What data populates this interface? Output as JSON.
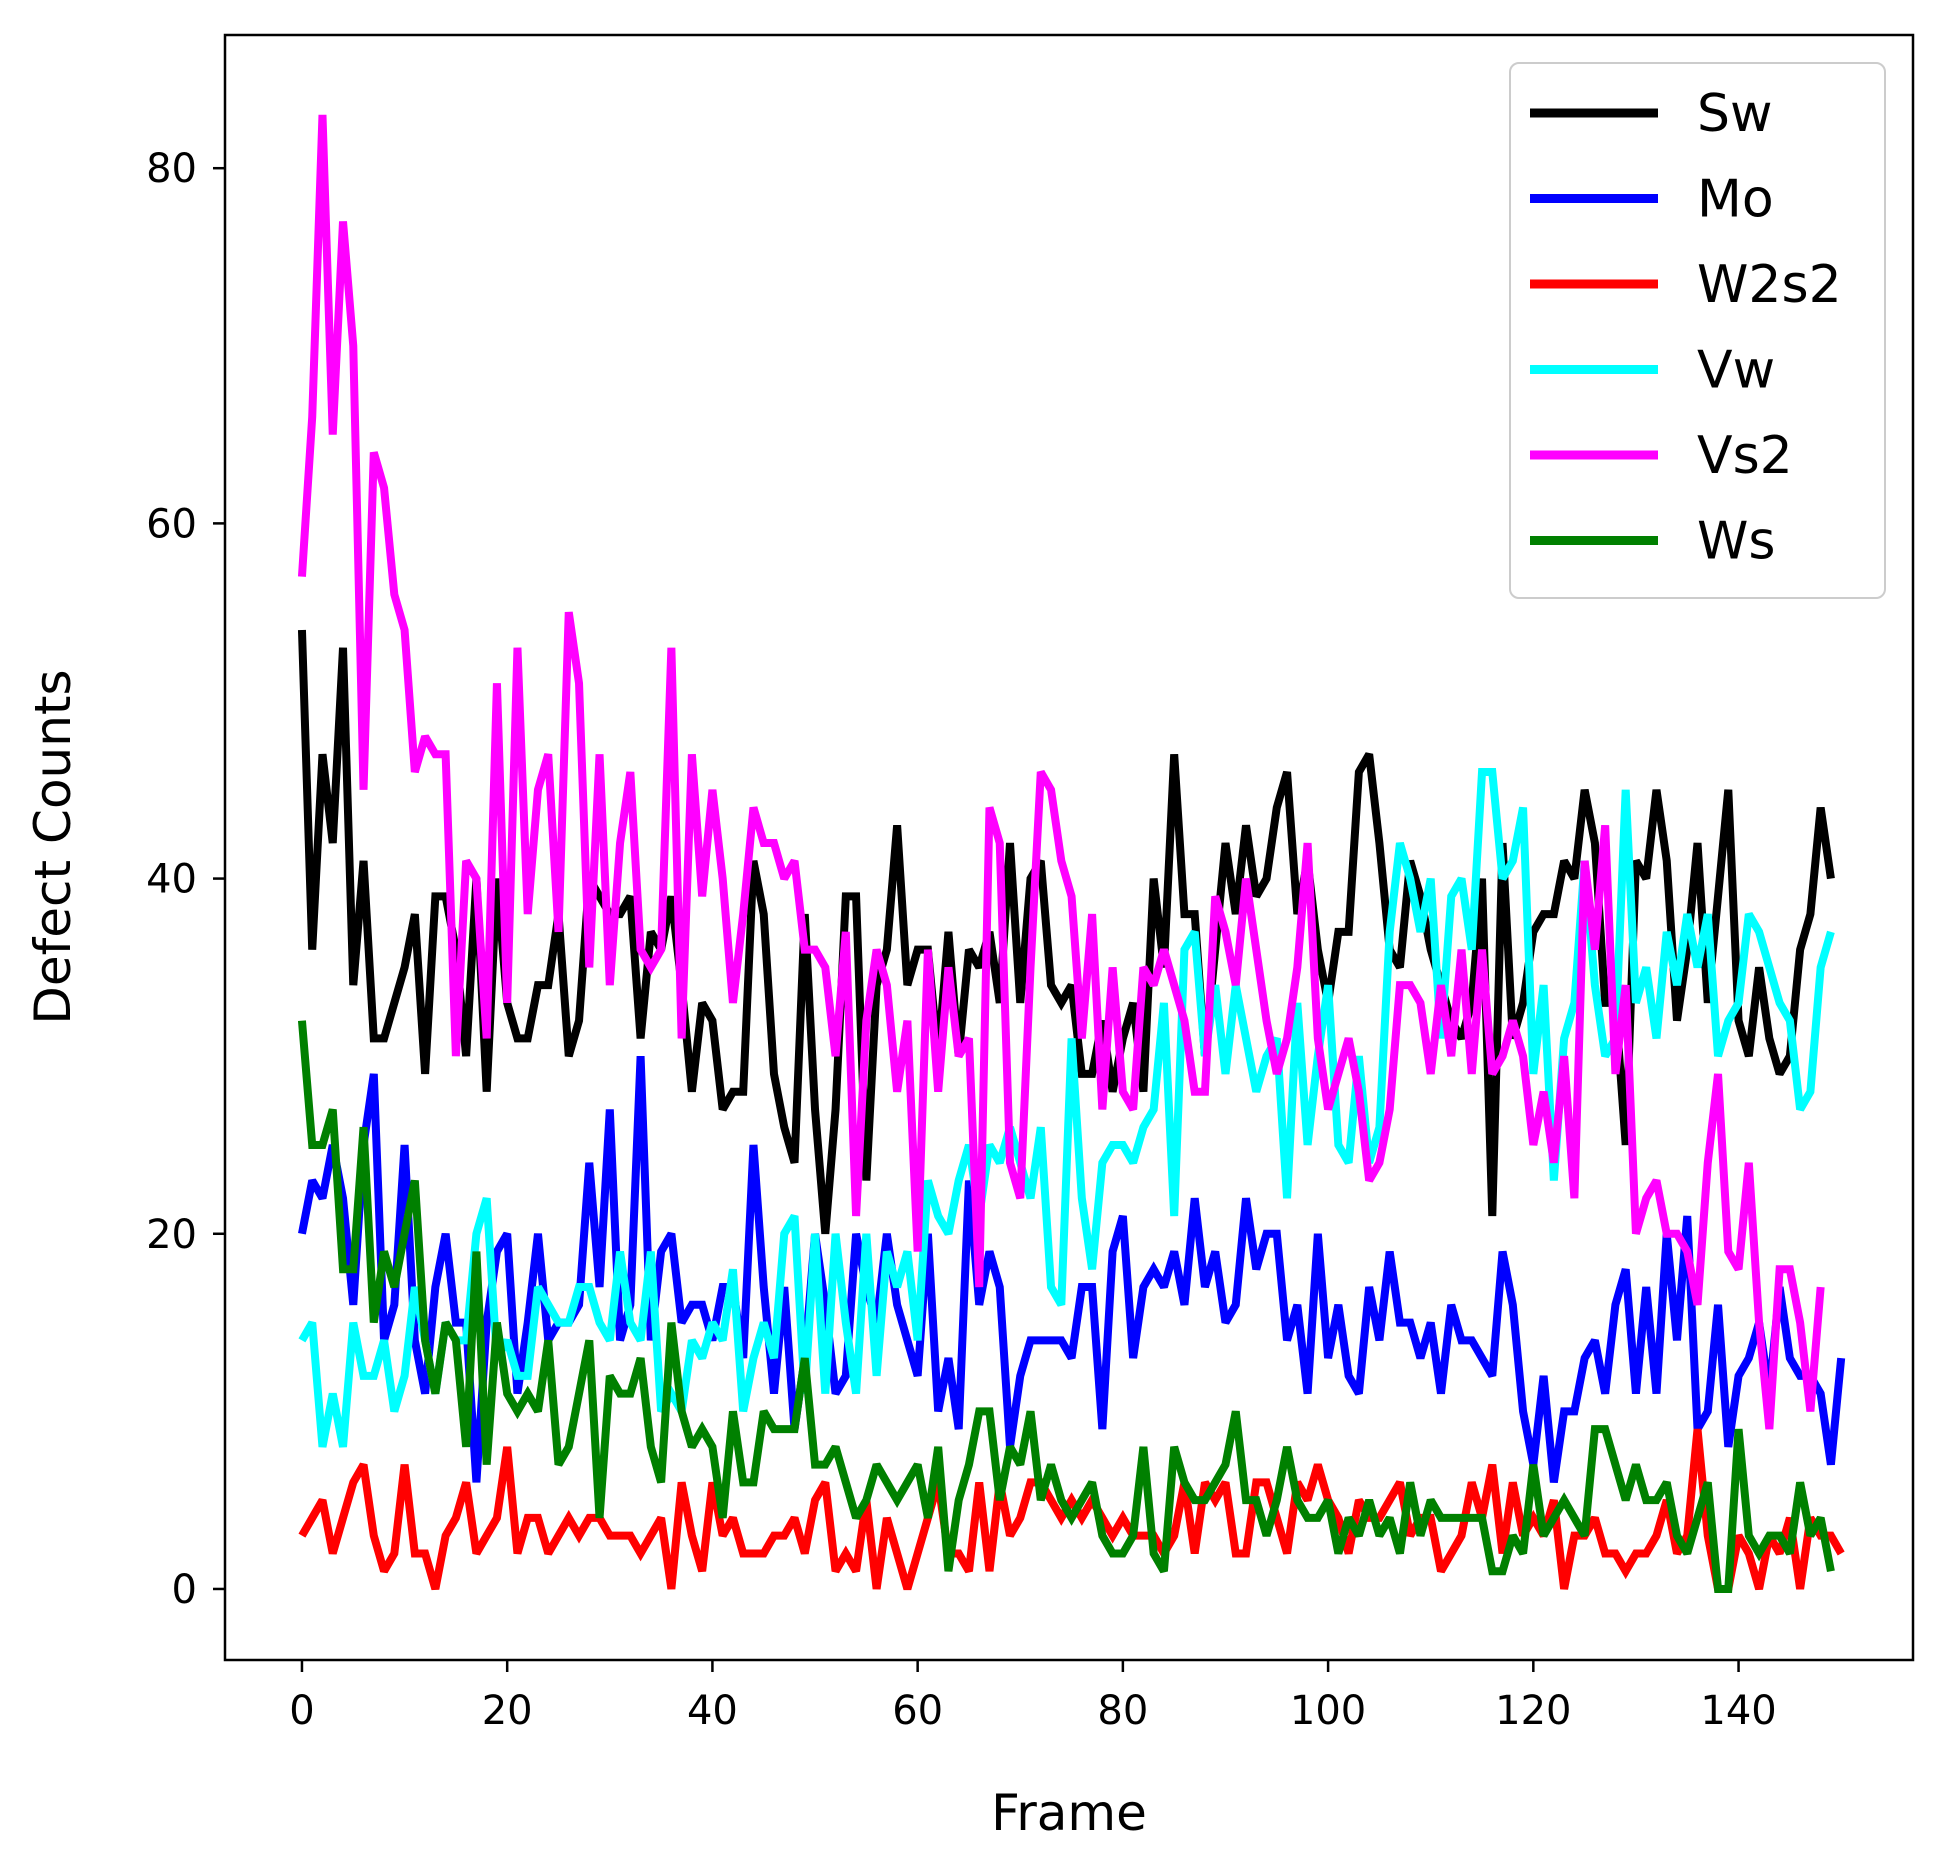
{
  "chart_data": {
    "type": "line",
    "xlabel": "Frame",
    "ylabel": "Defect Counts",
    "xlim": [
      -7.5,
      157
    ],
    "ylim": [
      -4,
      87.5
    ],
    "xticks": [
      0,
      20,
      40,
      60,
      80,
      100,
      120,
      140
    ],
    "yticks": [
      0,
      20,
      40,
      60,
      80
    ],
    "grid": false,
    "legend": "top-right",
    "series": [
      {
        "name": "Sw",
        "color": "#000000",
        "values": [
          54,
          36,
          47,
          42,
          53,
          34,
          41,
          31,
          31,
          33,
          35,
          38,
          29,
          39,
          39,
          36,
          30,
          40,
          28,
          40,
          33,
          31,
          31,
          34,
          34,
          38,
          30,
          32,
          40,
          39,
          38,
          38,
          39,
          31,
          37,
          36,
          39,
          34,
          28,
          33,
          32,
          27,
          28,
          28,
          41,
          38,
          29,
          26,
          24,
          38,
          27,
          20,
          27,
          39,
          39,
          23,
          34,
          36,
          43,
          34,
          36,
          36,
          30,
          37,
          30,
          36,
          35,
          37,
          33,
          42,
          33,
          40,
          41,
          34,
          33,
          34,
          29,
          29,
          32,
          28,
          31,
          33,
          28,
          40,
          35,
          47,
          38,
          38,
          30,
          36,
          42,
          38,
          43,
          39,
          40,
          44,
          46,
          38,
          41,
          36,
          33,
          37,
          37,
          46,
          47,
          42,
          36,
          35,
          41,
          39,
          36,
          34,
          32,
          31,
          33,
          40,
          21,
          42,
          31,
          33,
          37,
          38,
          38,
          41,
          40,
          45,
          42,
          33,
          33,
          25,
          41,
          40,
          45,
          41,
          32,
          36,
          42,
          33,
          39,
          45,
          32,
          30,
          35,
          31,
          29,
          30,
          36,
          38,
          44,
          40
        ]
      },
      {
        "name": "Mo",
        "color": "#0000ff",
        "values": [
          20,
          23,
          22,
          25,
          22,
          16,
          25,
          29,
          14,
          16,
          25,
          14,
          11,
          17,
          20,
          15,
          15,
          6,
          15,
          19,
          20,
          11,
          15,
          20,
          14,
          15,
          15,
          16,
          24,
          17,
          27,
          14,
          16,
          30,
          14,
          19,
          20,
          15,
          16,
          16,
          14,
          17,
          17,
          13,
          25,
          17,
          11,
          17,
          9,
          13,
          20,
          16,
          11,
          12,
          20,
          17,
          15,
          20,
          16,
          14,
          12,
          20,
          10,
          13,
          9,
          23,
          16,
          19,
          17,
          8,
          12,
          14,
          14,
          14,
          14,
          13,
          17,
          17,
          9,
          19,
          21,
          13,
          17,
          18,
          17,
          19,
          16,
          22,
          17,
          19,
          15,
          16,
          22,
          18,
          20,
          20,
          14,
          16,
          11,
          20,
          13,
          16,
          12,
          11,
          17,
          14,
          19,
          15,
          15,
          13,
          15,
          11,
          16,
          14,
          14,
          13,
          12,
          19,
          16,
          10,
          7,
          12,
          6,
          10,
          10,
          13,
          14,
          11,
          16,
          18,
          11,
          17,
          11,
          20,
          14,
          21,
          9,
          10,
          16,
          8,
          12,
          13,
          15,
          11,
          17,
          13,
          12,
          12,
          11,
          7,
          13
        ]
      },
      {
        "name": "W2s2",
        "color": "#ff0000",
        "values": [
          3,
          4,
          5,
          2,
          4,
          6,
          7,
          3,
          1,
          2,
          7,
          2,
          2,
          0,
          3,
          4,
          6,
          2,
          3,
          4,
          8,
          2,
          4,
          4,
          2,
          3,
          4,
          3,
          4,
          4,
          3,
          3,
          3,
          2,
          3,
          4,
          0,
          6,
          3,
          1,
          6,
          3,
          4,
          2,
          2,
          2,
          3,
          3,
          4,
          2,
          5,
          6,
          1,
          2,
          1,
          5,
          0,
          4,
          2,
          0,
          2,
          4,
          6,
          2,
          2,
          1,
          6,
          1,
          6,
          3,
          4,
          6,
          6,
          5,
          4,
          5,
          4,
          5,
          4,
          3,
          4,
          3,
          3,
          3,
          2,
          3,
          6,
          2,
          6,
          5,
          6,
          2,
          2,
          6,
          6,
          4,
          2,
          6,
          5,
          7,
          5,
          4,
          2,
          5,
          4,
          4,
          5,
          6,
          3,
          4,
          4,
          1,
          2,
          3,
          6,
          4,
          7,
          2,
          6,
          3,
          4,
          3,
          5,
          0,
          3,
          3,
          4,
          2,
          2,
          1,
          2,
          2,
          3,
          5,
          2,
          3,
          9,
          3,
          0,
          0,
          3,
          2,
          0,
          3,
          2,
          4,
          0,
          4,
          3,
          3,
          2
        ]
      },
      {
        "name": "Vw",
        "color": "#00ffff",
        "values": [
          14,
          15,
          8,
          11,
          8,
          15,
          12,
          12,
          14,
          10,
          12,
          17,
          14,
          11,
          15,
          14,
          14,
          20,
          22,
          13,
          14,
          12,
          12,
          17,
          16,
          15,
          15,
          17,
          17,
          15,
          14,
          19,
          15,
          14,
          19,
          10,
          11,
          10,
          14,
          13,
          15,
          14,
          18,
          10,
          13,
          15,
          13,
          20,
          21,
          11,
          20,
          11,
          20,
          15,
          11,
          20,
          12,
          19,
          17,
          19,
          14,
          23,
          21,
          20,
          23,
          25,
          21,
          25,
          24,
          26,
          24,
          22,
          26,
          17,
          16,
          31,
          22,
          18,
          24,
          25,
          25,
          24,
          26,
          27,
          33,
          21,
          36,
          37,
          30,
          34,
          29,
          34,
          31,
          28,
          30,
          31,
          22,
          33,
          25,
          30,
          34,
          25,
          24,
          30,
          24,
          26,
          37,
          42,
          40,
          37,
          40,
          31,
          39,
          40,
          36,
          46,
          46,
          40,
          41,
          44,
          29,
          34,
          23,
          31,
          33,
          41,
          34,
          30,
          31,
          45,
          33,
          35,
          31,
          37,
          34,
          38,
          35,
          38,
          30,
          32,
          33,
          38,
          37,
          35,
          33,
          32,
          27,
          28,
          35,
          37
        ]
      },
      {
        "name": "Vs2",
        "color": "#ff00ff",
        "values": [
          57,
          66,
          83,
          65,
          77,
          70,
          45,
          64,
          62,
          56,
          54,
          46,
          48,
          47,
          47,
          30,
          41,
          40,
          31,
          51,
          33,
          53,
          38,
          45,
          47,
          37,
          55,
          51,
          35,
          47,
          34,
          42,
          46,
          36,
          35,
          36,
          53,
          31,
          47,
          39,
          45,
          40,
          33,
          38,
          44,
          42,
          42,
          40,
          41,
          36,
          36,
          35,
          30,
          37,
          21,
          32,
          36,
          34,
          28,
          32,
          19,
          36,
          28,
          35,
          30,
          31,
          17,
          44,
          42,
          24,
          22,
          35,
          46,
          45,
          41,
          39,
          31,
          38,
          27,
          35,
          28,
          27,
          35,
          34,
          36,
          34,
          32,
          28,
          28,
          39,
          37,
          34,
          40,
          36,
          32,
          29,
          31,
          35,
          42,
          31,
          27,
          29,
          31,
          28,
          23,
          24,
          27,
          34,
          34,
          33,
          29,
          34,
          30,
          36,
          29,
          36,
          29,
          30,
          32,
          30,
          25,
          28,
          24,
          30,
          22,
          41,
          36,
          43,
          29,
          34,
          20,
          22,
          23,
          20,
          20,
          19,
          16,
          24,
          29,
          19,
          18,
          24,
          15,
          9,
          18,
          18,
          15,
          10,
          17
        ]
      },
      {
        "name": "Ws",
        "color": "#008000",
        "values": [
          32,
          25,
          25,
          27,
          18,
          18,
          26,
          15,
          19,
          17,
          20,
          23,
          14,
          11,
          15,
          14,
          8,
          19,
          7,
          15,
          11,
          10,
          11,
          10,
          14,
          7,
          8,
          11,
          14,
          4,
          12,
          11,
          11,
          13,
          8,
          6,
          15,
          10,
          8,
          9,
          8,
          4,
          10,
          6,
          6,
          10,
          9,
          9,
          9,
          13,
          7,
          7,
          8,
          6,
          4,
          5,
          7,
          6,
          5,
          6,
          7,
          4,
          8,
          1,
          5,
          7,
          10,
          10,
          5,
          8,
          7,
          10,
          5,
          7,
          5,
          4,
          5,
          6,
          3,
          2,
          2,
          3,
          8,
          2,
          1,
          8,
          6,
          5,
          5,
          6,
          7,
          10,
          5,
          5,
          3,
          5,
          8,
          5,
          4,
          4,
          5,
          2,
          4,
          3,
          5,
          3,
          4,
          2,
          6,
          3,
          5,
          4,
          4,
          4,
          4,
          4,
          1,
          1,
          3,
          2,
          7,
          3,
          4,
          5,
          4,
          3,
          9,
          9,
          7,
          5,
          7,
          5,
          5,
          6,
          3,
          2,
          4,
          6,
          0,
          0,
          9,
          3,
          2,
          3,
          3,
          2,
          6,
          3,
          4,
          1
        ]
      }
    ]
  }
}
